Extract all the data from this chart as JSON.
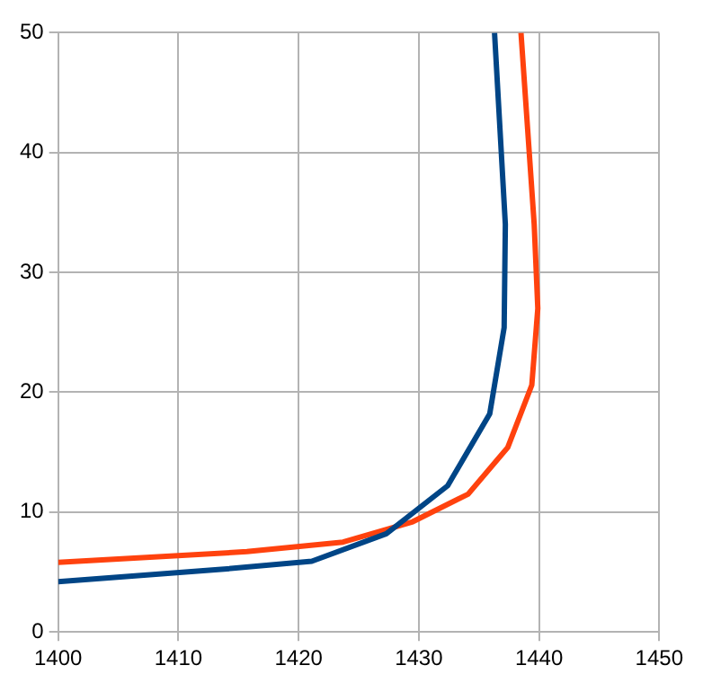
{
  "chart_data": {
    "type": "line",
    "xlim": [
      1400,
      1450
    ],
    "xticks": [
      1400,
      1410,
      1420,
      1430,
      1440,
      1450
    ],
    "ylim": [
      0,
      50
    ],
    "yticks": [
      0,
      10,
      20,
      30,
      40,
      50
    ],
    "grid": true,
    "legend": false,
    "marker": "none",
    "line_style": "solid",
    "series": [
      {
        "color": "#004586",
        "x": [
          1400,
          1413.3,
          1421.1,
          1427.3,
          1432.4,
          1435.9,
          1437.1,
          1437.2,
          1436.3
        ],
        "values": [
          4.2,
          5.2,
          5.9,
          8.2,
          12.2,
          18.2,
          25.4,
          34,
          50
        ]
      },
      {
        "color": "#ff420e",
        "x": [
          1400,
          1415.7,
          1423.7,
          1429.5,
          1434.1,
          1437.4,
          1439.4,
          1439.9,
          1439.6,
          1438.5
        ],
        "values": [
          5.8,
          6.7,
          7.5,
          9.2,
          11.5,
          15.4,
          20.6,
          27,
          34,
          50
        ]
      }
    ]
  }
}
